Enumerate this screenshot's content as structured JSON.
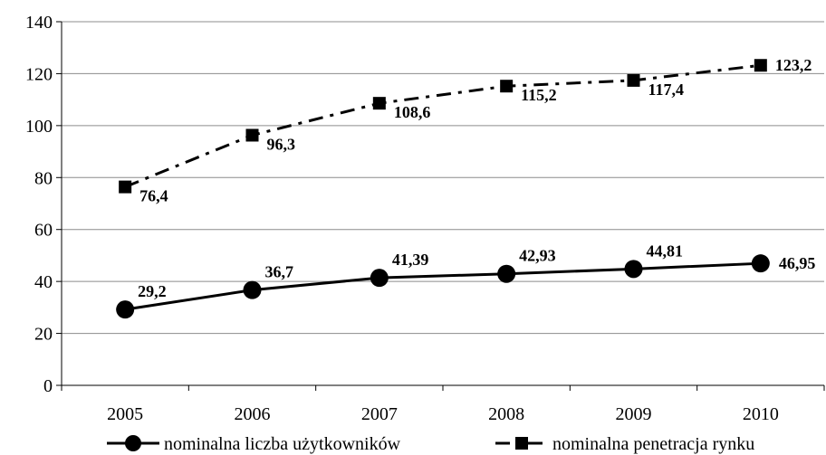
{
  "chart_data": {
    "type": "line",
    "categories": [
      "2005",
      "2006",
      "2007",
      "2008",
      "2009",
      "2010"
    ],
    "ylim": [
      0,
      140
    ],
    "yticks": [
      "0",
      "20",
      "40",
      "60",
      "80",
      "100",
      "120",
      "140"
    ],
    "grid": true,
    "legend_position": "bottom",
    "series": [
      {
        "name": "nominalna liczba użytkowników",
        "values": [
          29.2,
          36.7,
          41.39,
          42.93,
          44.81,
          46.95
        ],
        "labels": [
          "29,2",
          "36,7",
          "41,39",
          "42,93",
          "44,81",
          "46,95"
        ],
        "line_style": "solid",
        "marker": "circle",
        "color": "#000000"
      },
      {
        "name": "nominalna penetracja rynku",
        "values": [
          76.4,
          96.3,
          108.6,
          115.2,
          117.4,
          123.2
        ],
        "labels": [
          "76,4",
          "96,3",
          "108,6",
          "115,2",
          "117,4",
          "123,2"
        ],
        "line_style": "dash-dot",
        "marker": "square",
        "color": "#000000"
      }
    ]
  }
}
